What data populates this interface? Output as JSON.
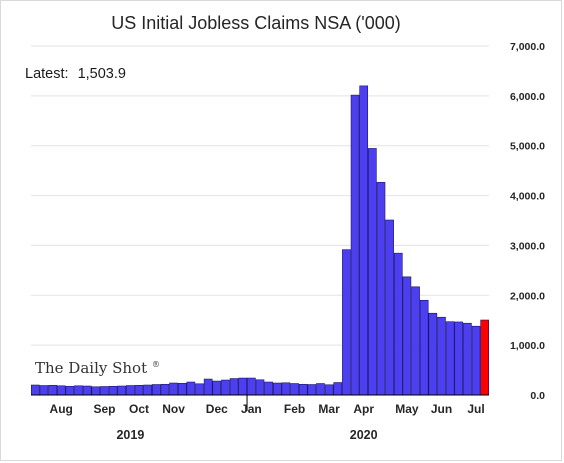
{
  "chart_data": {
    "type": "bar",
    "title": "US Initial Jobless Claims NSA ('000)",
    "annotation_label": "Latest:",
    "annotation_value": "1,503.9",
    "watermark": "The Daily Shot",
    "watermark_mark": "®",
    "y_axis_position": "right",
    "ylim": [
      0,
      7000
    ],
    "y_ticks": [
      {
        "value": 0,
        "label": "0.0"
      },
      {
        "value": 1000,
        "label": "1,000.0"
      },
      {
        "value": 2000,
        "label": "2,000.0"
      },
      {
        "value": 3000,
        "label": "3,000.0"
      },
      {
        "value": 4000,
        "label": "4,000.0"
      },
      {
        "value": 5000,
        "label": "5,000.0"
      },
      {
        "value": 6000,
        "label": "6,000.0"
      },
      {
        "value": 7000,
        "label": "7,000.0"
      }
    ],
    "grid": true,
    "colors": {
      "bar": "#4b3ff0",
      "latest_bar": "#ff0000",
      "bar_edge": "#1a1466"
    },
    "month_labels": [
      {
        "label": "Aug",
        "after_index": 3
      },
      {
        "label": "Sep",
        "after_index": 8
      },
      {
        "label": "Oct",
        "after_index": 12
      },
      {
        "label": "Nov",
        "after_index": 16
      },
      {
        "label": "Dec",
        "after_index": 21
      },
      {
        "label": "Jan",
        "after_index": 25
      },
      {
        "label": "Feb",
        "after_index": 30
      },
      {
        "label": "Mar",
        "after_index": 34
      },
      {
        "label": "Apr",
        "after_index": 38
      },
      {
        "label": "May",
        "after_index": 43
      },
      {
        "label": "Jun",
        "after_index": 47
      },
      {
        "label": "Jul",
        "after_index": 51
      }
    ],
    "year_labels": [
      {
        "label": "2019",
        "after_index": 11
      },
      {
        "label": "2020",
        "after_index": 38
      }
    ],
    "year_divider_index": 25,
    "values": [
      200,
      190,
      195,
      185,
      175,
      185,
      180,
      165,
      170,
      175,
      180,
      190,
      195,
      200,
      210,
      215,
      240,
      235,
      260,
      225,
      320,
      280,
      300,
      330,
      340,
      340,
      305,
      260,
      240,
      245,
      230,
      215,
      210,
      230,
      205,
      250,
      2915,
      6015,
      6200,
      4945,
      4265,
      3510,
      2845,
      2370,
      2170,
      1900,
      1640,
      1560,
      1470,
      1465,
      1440,
      1380,
      1503.9
    ],
    "latest_index": 52
  }
}
